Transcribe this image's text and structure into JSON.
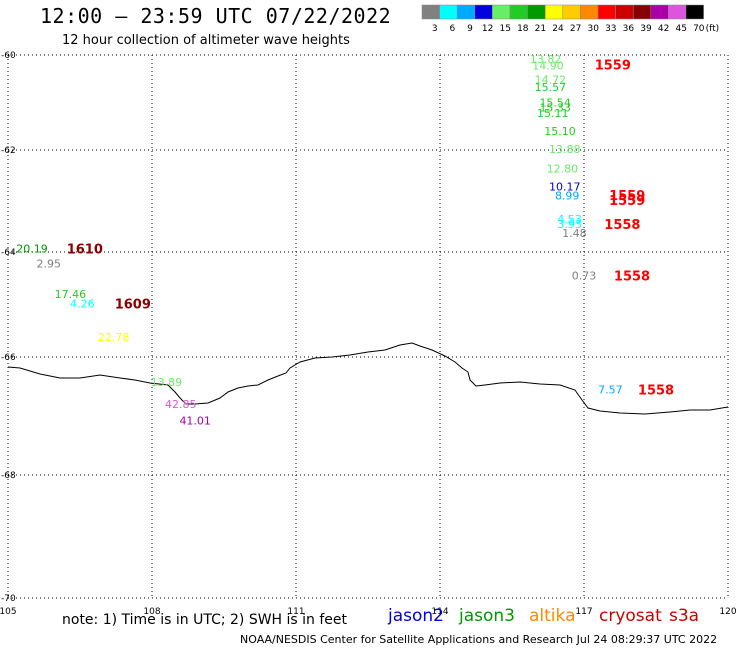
{
  "header": {
    "title": "12:00 – 23:59 UTC 07/22/2022",
    "subtitle": "12 hour collection of altimeter wave heights"
  },
  "legend": {
    "unit": "(ft)",
    "bins": [
      {
        "label": "3",
        "color": "#808080"
      },
      {
        "label": "6",
        "color": "#00ffff"
      },
      {
        "label": "9",
        "color": "#00aaff"
      },
      {
        "label": "12",
        "color": "#0000dd"
      },
      {
        "label": "15",
        "color": "#66ee66"
      },
      {
        "label": "18",
        "color": "#22cc22"
      },
      {
        "label": "21",
        "color": "#009900"
      },
      {
        "label": "24",
        "color": "#ffff00"
      },
      {
        "label": "27",
        "color": "#ffcc00"
      },
      {
        "label": "30",
        "color": "#ff8800"
      },
      {
        "label": "33",
        "color": "#ff0000"
      },
      {
        "label": "36",
        "color": "#cc0000"
      },
      {
        "label": "39",
        "color": "#880000"
      },
      {
        "label": "42",
        "color": "#aa00aa"
      },
      {
        "label": "45",
        "color": "#dd55dd"
      },
      {
        "label": "70",
        "color": "#000000"
      }
    ]
  },
  "axes": {
    "lat_labels": [
      "-60",
      "-62",
      "-64",
      "-66",
      "-68",
      "-70"
    ],
    "lon_labels": [
      "105",
      "108",
      "111",
      "114",
      "117",
      "120"
    ]
  },
  "observations": [
    {
      "lon": 116.2,
      "lat": -60.08,
      "value": "13.82",
      "color": "#66ee66"
    },
    {
      "lon": 116.25,
      "lat": -60.22,
      "value": "14.90",
      "color": "#66ee66"
    },
    {
      "lon": 116.3,
      "lat": -60.52,
      "value": "14.72",
      "color": "#66ee66"
    },
    {
      "lon": 116.3,
      "lat": -60.67,
      "value": "15.57",
      "color": "#22cc22"
    },
    {
      "lon": 116.4,
      "lat": -61.0,
      "value": "15.54",
      "color": "#22cc22"
    },
    {
      "lon": 116.4,
      "lat": -61.1,
      "value": "15.33",
      "color": "#22cc22"
    },
    {
      "lon": 116.35,
      "lat": -61.22,
      "value": "15.11",
      "color": "#22cc22"
    },
    {
      "lon": 116.5,
      "lat": -61.6,
      "value": "15.10",
      "color": "#22cc22"
    },
    {
      "lon": 116.6,
      "lat": -61.98,
      "value": "13.88",
      "color": "#66ee66"
    },
    {
      "lon": 116.55,
      "lat": -62.36,
      "value": "12.80",
      "color": "#66ee66"
    },
    {
      "lon": 116.6,
      "lat": -62.72,
      "value": "10.17",
      "color": "#0000dd"
    },
    {
      "lon": 116.65,
      "lat": -62.89,
      "value": "8.99",
      "color": "#00aaff"
    },
    {
      "lon": 116.7,
      "lat": -63.35,
      "value": "4.53",
      "color": "#00ffff"
    },
    {
      "lon": 116.7,
      "lat": -63.45,
      "value": "3.93",
      "color": "#00ffff"
    },
    {
      "lon": 116.8,
      "lat": -63.63,
      "value": "1.48",
      "color": "#808080"
    },
    {
      "lon": 117.0,
      "lat": -64.45,
      "value": "0.73",
      "color": "#808080"
    },
    {
      "lon": 117.55,
      "lat": -66.55,
      "value": "7.57",
      "color": "#00aaff"
    },
    {
      "lon": 105.5,
      "lat": -63.93,
      "value": "20.19",
      "color": "#009900"
    },
    {
      "lon": 105.85,
      "lat": -64.22,
      "value": "2.95",
      "color": "#808080"
    },
    {
      "lon": 106.3,
      "lat": -64.8,
      "value": "17.46",
      "color": "#22cc22"
    },
    {
      "lon": 106.55,
      "lat": -64.98,
      "value": "4.26",
      "color": "#00ffff"
    },
    {
      "lon": 107.2,
      "lat": -65.62,
      "value": "22.78",
      "color": "#ffff00"
    },
    {
      "lon": 108.3,
      "lat": -66.42,
      "value": "13.89",
      "color": "#66ee66"
    },
    {
      "lon": 108.6,
      "lat": -66.8,
      "value": "42.85",
      "color": "#dd55dd"
    },
    {
      "lon": 108.9,
      "lat": -67.08,
      "value": "41.01",
      "color": "#aa00aa"
    }
  ],
  "time_labels": [
    {
      "lon": 117.6,
      "lat": -60.2,
      "text": "1559",
      "color": "#ff0000"
    },
    {
      "lon": 117.9,
      "lat": -62.88,
      "text": "1559",
      "color": "#ff0000"
    },
    {
      "lon": 117.9,
      "lat": -62.98,
      "text": "1559",
      "color": "#ff0000"
    },
    {
      "lon": 117.8,
      "lat": -63.45,
      "text": "1558",
      "color": "#ff0000"
    },
    {
      "lon": 118.0,
      "lat": -64.45,
      "text": "1558",
      "color": "#ff0000"
    },
    {
      "lon": 118.5,
      "lat": -66.55,
      "text": "1558",
      "color": "#ff0000"
    },
    {
      "lon": 106.6,
      "lat": -63.93,
      "text": "1610",
      "color": "#880000"
    },
    {
      "lon": 107.6,
      "lat": -64.98,
      "text": "1609",
      "color": "#880000"
    }
  ],
  "footer": {
    "note": "note: 1) Time is in UTC; 2) SWH is in feet",
    "credit": "NOAA/NESDIS Center for Satellite Applications and Research   Jul 24 08:29:37 UTC 2022",
    "satellites": [
      {
        "name": "jason2",
        "color": "#0000dd"
      },
      {
        "name": "jason3",
        "color": "#009900"
      },
      {
        "name": "altika",
        "color": "#ff8800"
      },
      {
        "name": "cryosat",
        "color": "#cc0000"
      },
      {
        "name": "s3a",
        "color": "#cc0000"
      }
    ]
  }
}
